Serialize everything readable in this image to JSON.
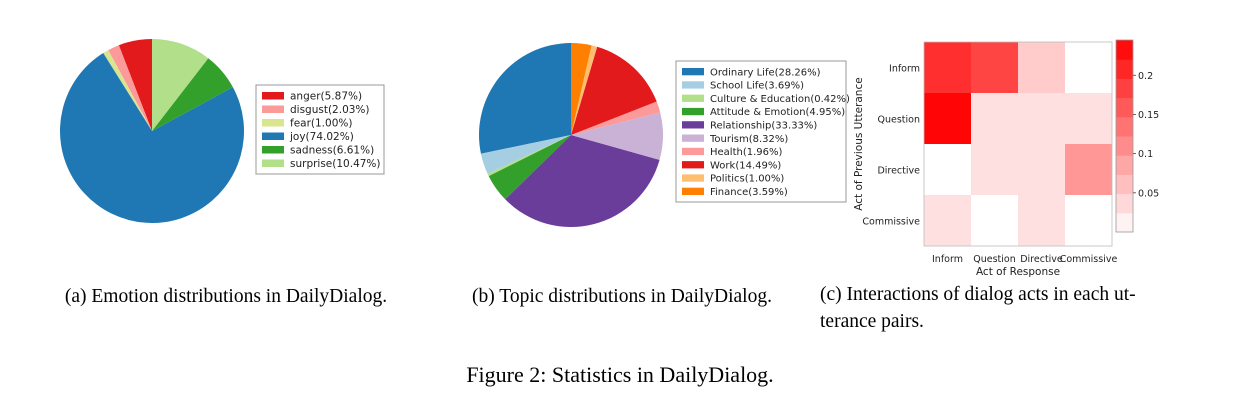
{
  "figure_caption": "Figure 2: Statistics in DailyDialog.",
  "subcaptions": {
    "a": "(a)  Emotion distributions in DailyDialog.",
    "b": "(b)  Topic distributions in DailyDialog.",
    "c_line1": "(c)  Interactions of dialog acts in each ut-",
    "c_line2": "terance pairs."
  },
  "chart_data": [
    {
      "type": "pie",
      "startangle_deg": 90,
      "direction": "counterclockwise",
      "slices": [
        {
          "label": "anger(5.87%)",
          "value": 5.87,
          "color": "#e31a1c"
        },
        {
          "label": "disgust(2.03%)",
          "value": 2.03,
          "color": "#fb9a99"
        },
        {
          "label": "fear(1.00%)",
          "value": 1.0,
          "color": "#d9e58f"
        },
        {
          "label": "joy(74.02%)",
          "value": 74.02,
          "color": "#1f78b4"
        },
        {
          "label": "sadness(6.61%)",
          "value": 6.61,
          "color": "#33a02c"
        },
        {
          "label": "surprise(10.47%)",
          "value": 10.47,
          "color": "#b2df8a"
        }
      ]
    },
    {
      "type": "pie",
      "startangle_deg": 90,
      "direction": "counterclockwise",
      "slices": [
        {
          "label": "Ordinary Life(28.26%)",
          "value": 28.26,
          "color": "#1f78b4"
        },
        {
          "label": "School Life(3.69%)",
          "value": 3.69,
          "color": "#a6cee3"
        },
        {
          "label": "Culture & Education(0.42%)",
          "value": 0.42,
          "color": "#b2df8a"
        },
        {
          "label": "Attitude & Emotion(4.95%)",
          "value": 4.95,
          "color": "#33a02c"
        },
        {
          "label": "Relationship(33.33%)",
          "value": 33.33,
          "color": "#6a3d9a"
        },
        {
          "label": "Tourism(8.32%)",
          "value": 8.32,
          "color": "#cab2d6"
        },
        {
          "label": "Health(1.96%)",
          "value": 1.96,
          "color": "#fb9a99"
        },
        {
          "label": "Work(14.49%)",
          "value": 14.49,
          "color": "#e31a1c"
        },
        {
          "label": "Politics(1.00%)",
          "value": 1.0,
          "color": "#fdbf6f"
        },
        {
          "label": "Finance(3.59%)",
          "value": 3.59,
          "color": "#ff7f00"
        }
      ]
    },
    {
      "type": "heatmap",
      "rows": [
        "Inform",
        "Question",
        "Directive",
        "Commissive"
      ],
      "cols": [
        "Inform",
        "Question",
        "Directive",
        "Commissive"
      ],
      "xlabel": "Act of Response",
      "ylabel": "Act of Previous Utterance",
      "values": [
        [
          0.2,
          0.18,
          0.05,
          0.0
        ],
        [
          0.24,
          0.03,
          0.03,
          0.03
        ],
        [
          0.0,
          0.03,
          0.03,
          0.1
        ],
        [
          0.03,
          0.0,
          0.03,
          0.0
        ]
      ],
      "colorbar": {
        "vmin": 0,
        "vmax": 0.245,
        "ticks": [
          0.05,
          0.1,
          0.15,
          0.2
        ],
        "tick_labels": [
          "0.05",
          "0.1",
          "0.15",
          "0.2"
        ]
      }
    }
  ]
}
